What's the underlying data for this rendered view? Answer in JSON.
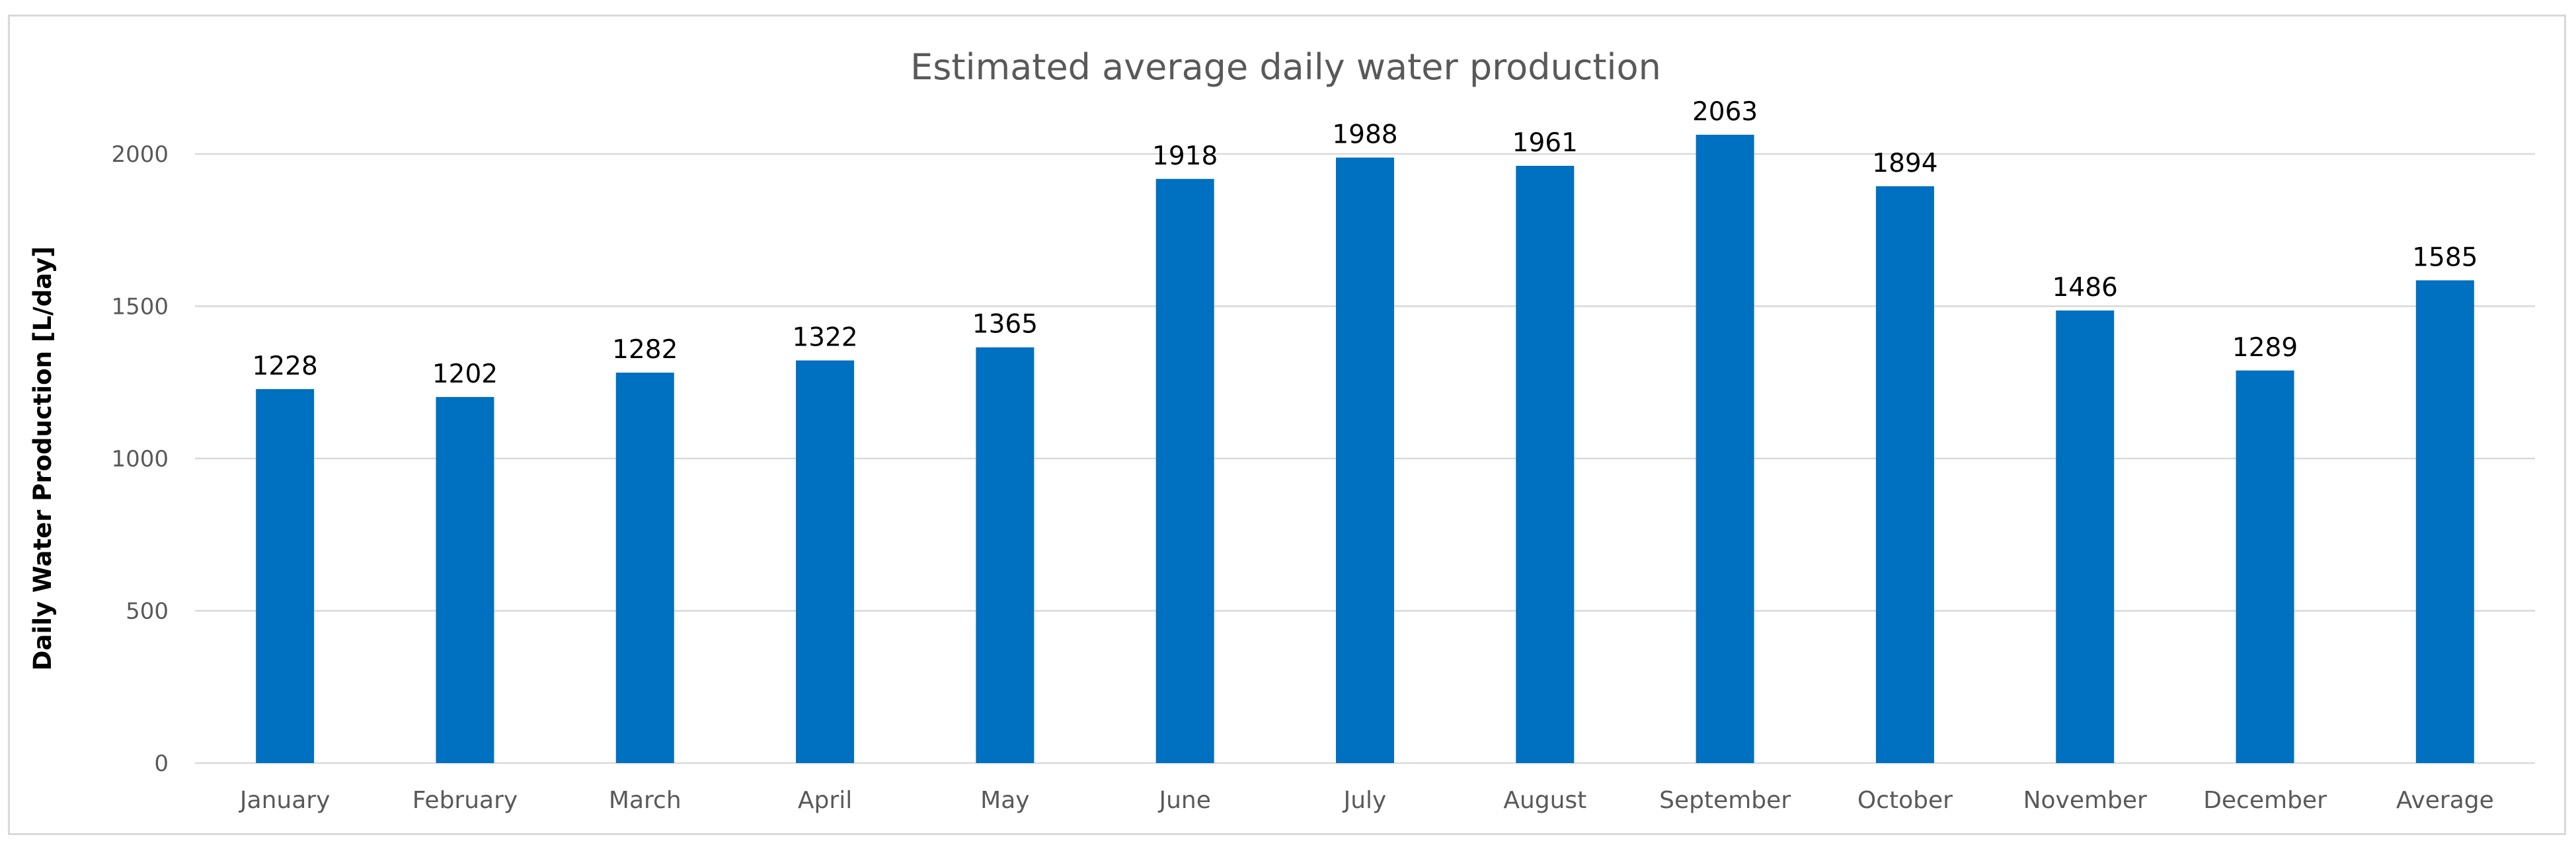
{
  "chart_data": {
    "type": "bar",
    "title": "Estimated average daily water production",
    "xlabel": "",
    "ylabel": "Daily Water Production [L/day]",
    "categories": [
      "January",
      "February",
      "March",
      "April",
      "May",
      "June",
      "July",
      "August",
      "September",
      "October",
      "November",
      "December",
      "Average"
    ],
    "values": [
      1228,
      1202,
      1282,
      1322,
      1365,
      1918,
      1988,
      1961,
      2063,
      1894,
      1486,
      1289,
      1585
    ],
    "ylim": [
      0,
      2000
    ],
    "yticks": [
      0,
      500,
      1000,
      1500,
      2000
    ],
    "grid": true,
    "legend": "none",
    "bar_color": "#0070c0",
    "data_labels": true
  }
}
